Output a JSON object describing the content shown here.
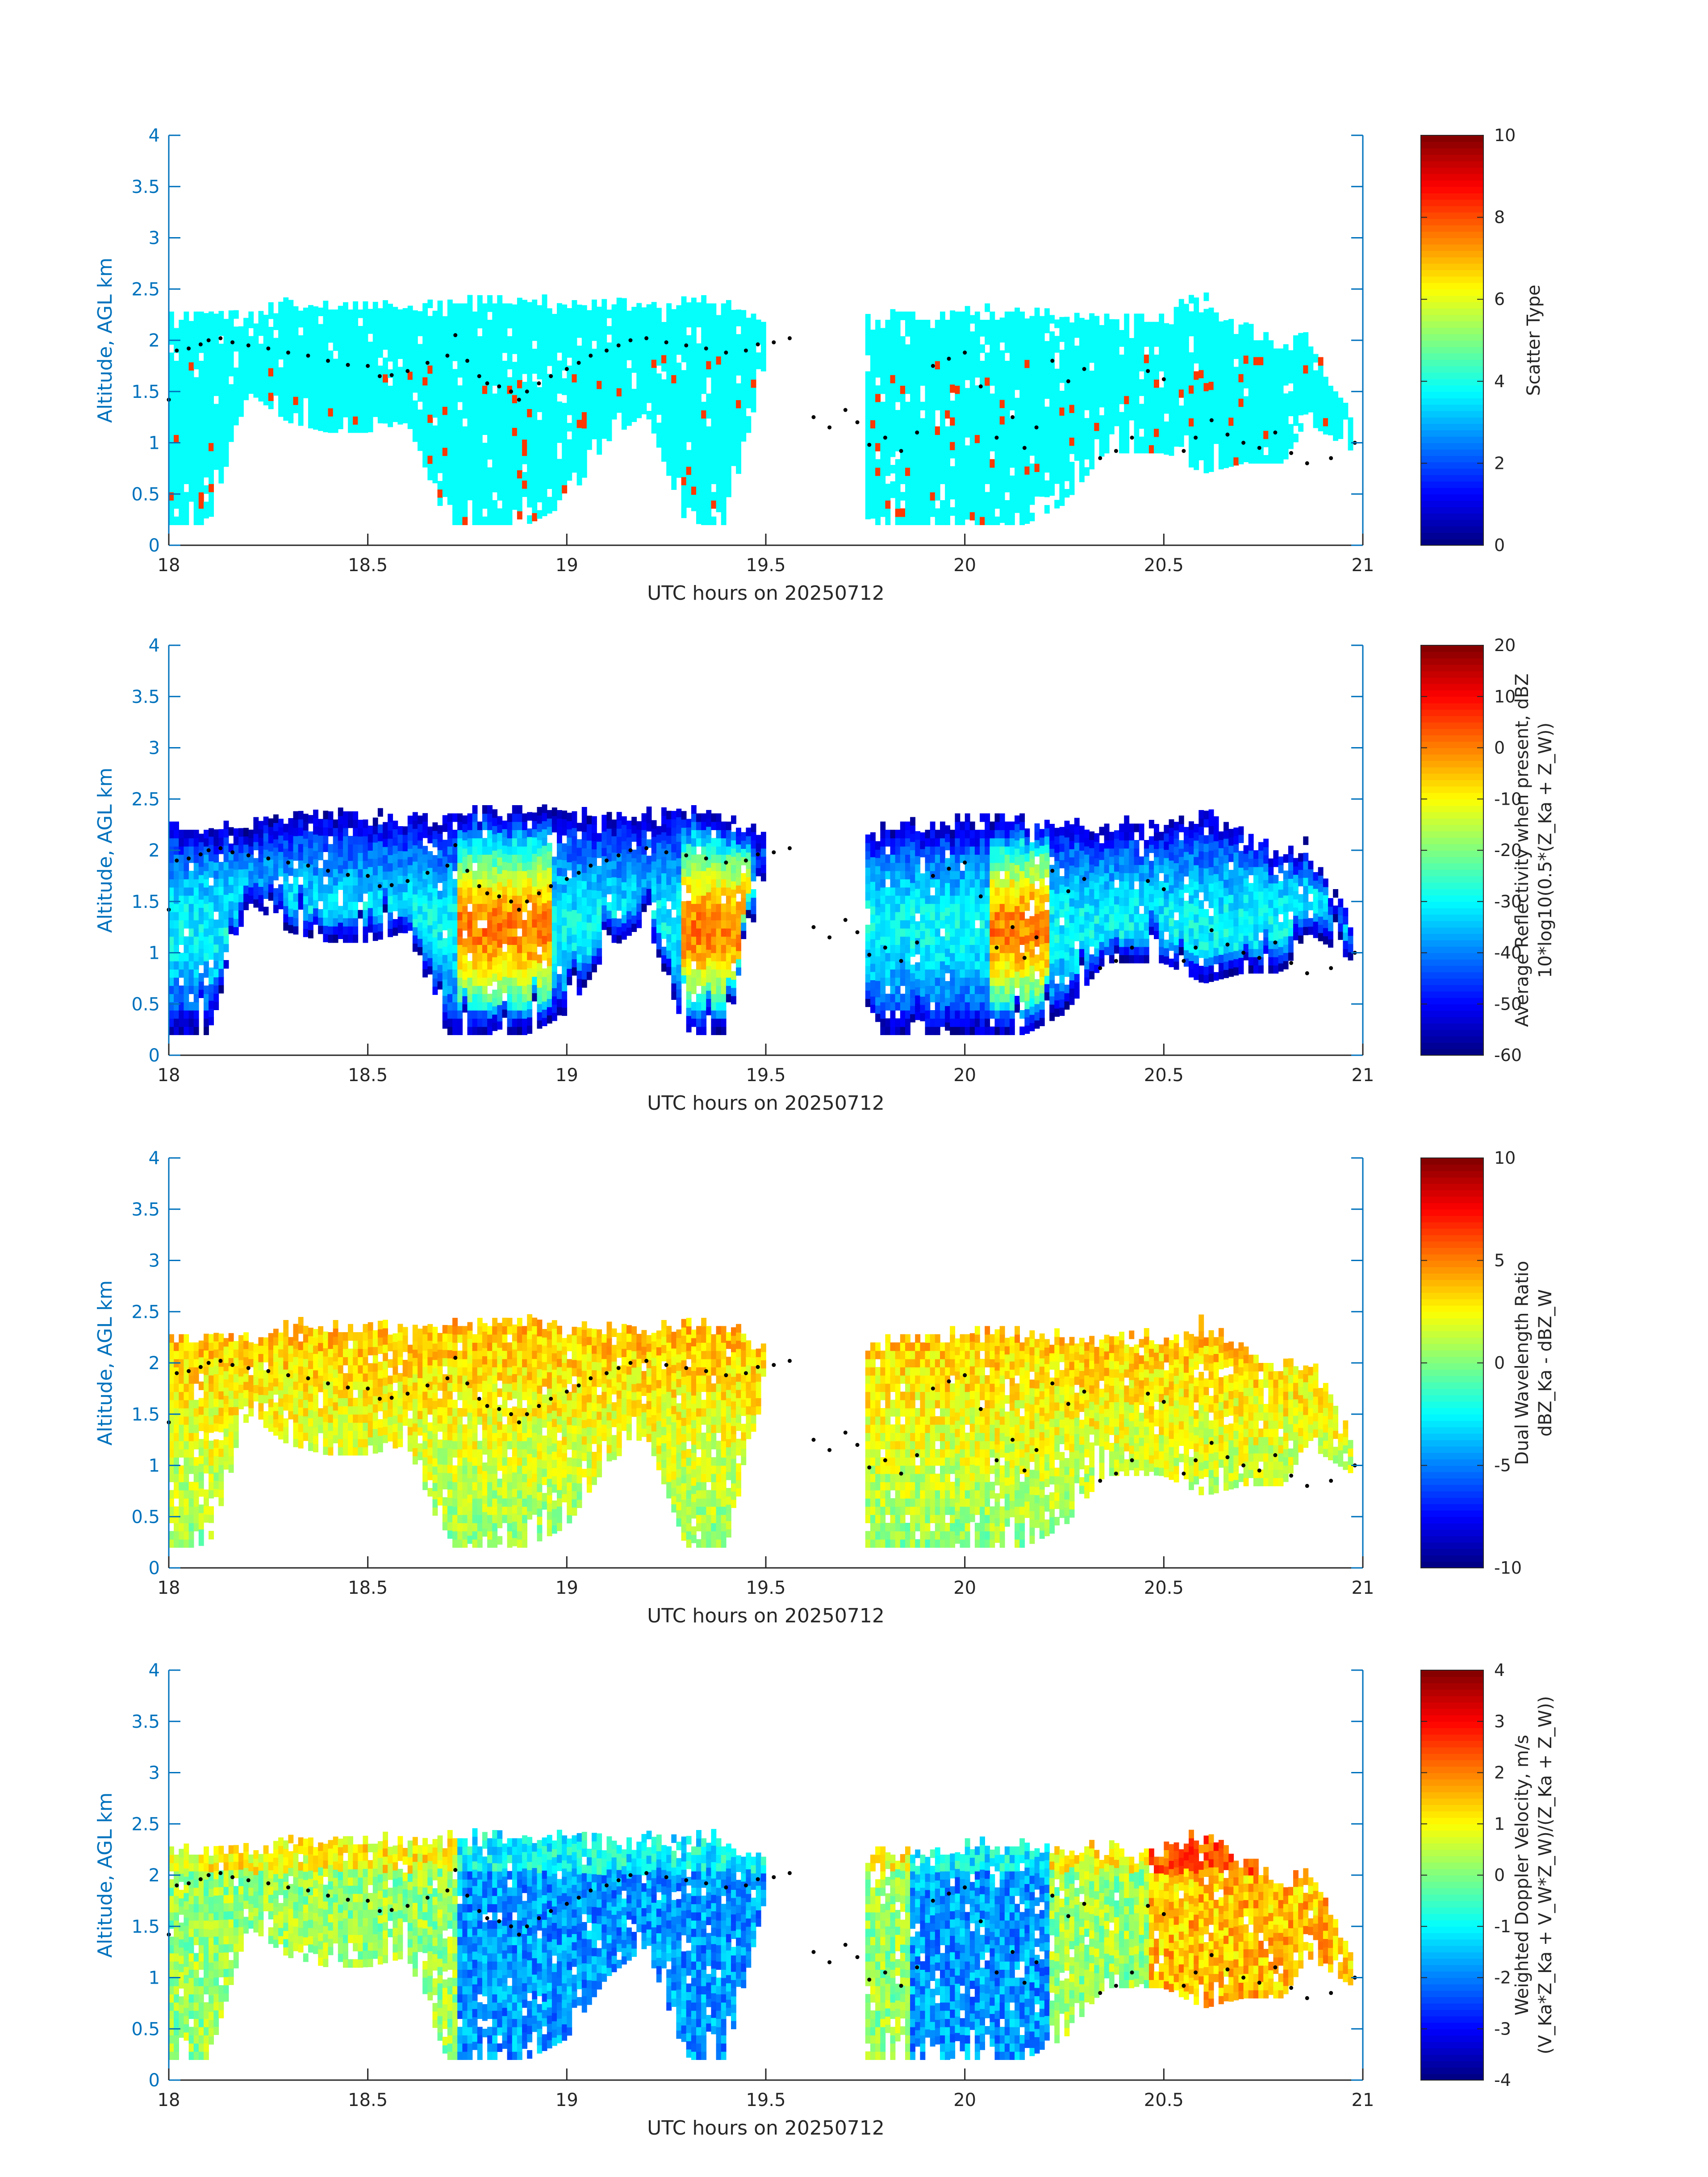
{
  "chart_data": [
    {
      "type": "heatmap",
      "xlabel": "UTC hours on 20250712",
      "ylabel": "Altitude, AGL km",
      "xlim": [
        18,
        21
      ],
      "ylim": [
        0,
        4
      ],
      "xticks": [
        "18",
        "18.5",
        "19",
        "19.5",
        "20",
        "20.5",
        "21"
      ],
      "yticks": [
        "0",
        "0.5",
        "1",
        "1.5",
        "2",
        "2.5",
        "3",
        "3.5",
        "4"
      ],
      "colormap": "jet",
      "colorbar": {
        "label_lines": [
          "Scatter Type"
        ],
        "clim": [
          0,
          10
        ],
        "ticks": [
          "0",
          "2",
          "4",
          "6",
          "8",
          "10"
        ]
      },
      "dominant_value": 3.8,
      "secondary_value": 8.2
    },
    {
      "type": "heatmap",
      "xlabel": "UTC hours on 20250712",
      "ylabel": "Altitude, AGL km",
      "xlim": [
        18,
        21
      ],
      "ylim": [
        0,
        4
      ],
      "xticks": [
        "18",
        "18.5",
        "19",
        "19.5",
        "20",
        "20.5",
        "21"
      ],
      "yticks": [
        "0",
        "0.5",
        "1",
        "1.5",
        "2",
        "2.5",
        "3",
        "3.5",
        "4"
      ],
      "colormap": "jet",
      "colorbar": {
        "label_lines": [
          "Average Reflectivity when present, dBZ",
          "10*log10(0.5*(Z_Ka + Z_W))"
        ],
        "clim": [
          -60,
          20
        ],
        "ticks": [
          "-60",
          "-50",
          "-40",
          "-30",
          "-20",
          "-10",
          "0",
          "10",
          "20"
        ]
      }
    },
    {
      "type": "heatmap",
      "xlabel": "UTC hours on 20250712",
      "ylabel": "Altitude, AGL km",
      "xlim": [
        18,
        21
      ],
      "ylim": [
        0,
        4
      ],
      "xticks": [
        "18",
        "18.5",
        "19",
        "19.5",
        "20",
        "20.5",
        "21"
      ],
      "yticks": [
        "0",
        "0.5",
        "1",
        "1.5",
        "2",
        "2.5",
        "3",
        "3.5",
        "4"
      ],
      "colormap": "jet",
      "colorbar": {
        "label_lines": [
          "Dual Wavelength Ratio",
          "dBZ_Ka - dBZ_W"
        ],
        "clim": [
          -10,
          10
        ],
        "ticks": [
          "-10",
          "-5",
          "0",
          "5",
          "10"
        ]
      }
    },
    {
      "type": "heatmap",
      "xlabel": "UTC hours on 20250712",
      "ylabel": "Altitude, AGL km",
      "xlim": [
        18,
        21
      ],
      "ylim": [
        0,
        4
      ],
      "xticks": [
        "18",
        "18.5",
        "19",
        "19.5",
        "20",
        "20.5",
        "21"
      ],
      "yticks": [
        "0",
        "0.5",
        "1",
        "1.5",
        "2",
        "2.5",
        "3",
        "3.5",
        "4"
      ],
      "colormap": "jet",
      "colorbar": {
        "label_lines": [
          "Weighted Doppler Velocity, m/s",
          "(V_Ka*Z_Ka + V_W*Z_W)/(Z_Ka + Z_W))"
        ],
        "clim": [
          -4,
          4
        ],
        "ticks": [
          "-4",
          "-3",
          "-2",
          "-1",
          "0",
          "1",
          "2",
          "3",
          "4"
        ]
      }
    }
  ],
  "echo_columns": [
    [
      18.0,
      0.2,
      2.2
    ],
    [
      18.1,
      0.2,
      2.2
    ],
    [
      18.2,
      1.5,
      2.2
    ],
    [
      18.3,
      1.2,
      2.3
    ],
    [
      18.4,
      1.1,
      2.3
    ],
    [
      18.5,
      1.1,
      2.3
    ],
    [
      18.6,
      1.2,
      2.3
    ],
    [
      18.7,
      0.2,
      2.3
    ],
    [
      18.8,
      0.2,
      2.35
    ],
    [
      18.9,
      0.2,
      2.35
    ],
    [
      19.0,
      0.4,
      2.3
    ],
    [
      19.1,
      1.0,
      2.3
    ],
    [
      19.2,
      1.3,
      2.3
    ],
    [
      19.3,
      0.2,
      2.35
    ],
    [
      19.4,
      0.2,
      2.3
    ],
    [
      19.5,
      1.8,
      2.1
    ],
    [
      19.75,
      0.2,
      2.1
    ],
    [
      19.85,
      0.2,
      2.2
    ],
    [
      19.95,
      0.2,
      2.2
    ],
    [
      20.05,
      0.2,
      2.25
    ],
    [
      20.15,
      0.2,
      2.25
    ],
    [
      20.25,
      0.4,
      2.2
    ],
    [
      20.35,
      0.9,
      2.2
    ],
    [
      20.5,
      0.9,
      2.2
    ],
    [
      20.6,
      0.7,
      2.35
    ],
    [
      20.7,
      0.8,
      2.1
    ],
    [
      20.8,
      0.8,
      1.9
    ],
    [
      20.86,
      1.2,
      2.0
    ],
    [
      20.98,
      0.9,
      1.15
    ]
  ],
  "cloud_base_markers": [
    [
      18.0,
      1.42
    ],
    [
      18.02,
      1.9
    ],
    [
      18.05,
      1.92
    ],
    [
      18.08,
      1.96
    ],
    [
      18.1,
      2.0
    ],
    [
      18.13,
      2.02
    ],
    [
      18.16,
      1.98
    ],
    [
      18.2,
      1.95
    ],
    [
      18.25,
      1.92
    ],
    [
      18.3,
      1.88
    ],
    [
      18.35,
      1.85
    ],
    [
      18.4,
      1.8
    ],
    [
      18.45,
      1.76
    ],
    [
      18.5,
      1.75
    ],
    [
      18.53,
      1.65
    ],
    [
      18.56,
      1.66
    ],
    [
      18.6,
      1.7
    ],
    [
      18.65,
      1.78
    ],
    [
      18.7,
      1.85
    ],
    [
      18.72,
      2.05
    ],
    [
      18.75,
      1.8
    ],
    [
      18.78,
      1.65
    ],
    [
      18.8,
      1.58
    ],
    [
      18.83,
      1.55
    ],
    [
      18.86,
      1.5
    ],
    [
      18.88,
      1.42
    ],
    [
      18.9,
      1.5
    ],
    [
      18.93,
      1.58
    ],
    [
      18.96,
      1.65
    ],
    [
      19.0,
      1.72
    ],
    [
      19.03,
      1.78
    ],
    [
      19.06,
      1.85
    ],
    [
      19.1,
      1.9
    ],
    [
      19.13,
      1.95
    ],
    [
      19.16,
      2.0
    ],
    [
      19.2,
      2.02
    ],
    [
      19.25,
      1.98
    ],
    [
      19.3,
      1.95
    ],
    [
      19.35,
      1.92
    ],
    [
      19.4,
      1.88
    ],
    [
      19.45,
      1.9
    ],
    [
      19.48,
      1.96
    ],
    [
      19.52,
      1.98
    ],
    [
      19.56,
      2.02
    ],
    [
      19.62,
      1.25
    ],
    [
      19.66,
      1.15
    ],
    [
      19.7,
      1.32
    ],
    [
      19.73,
      1.2
    ],
    [
      19.76,
      0.98
    ],
    [
      19.8,
      1.05
    ],
    [
      19.84,
      0.92
    ],
    [
      19.88,
      1.1
    ],
    [
      19.92,
      1.75
    ],
    [
      19.96,
      1.82
    ],
    [
      20.0,
      1.88
    ],
    [
      20.04,
      1.55
    ],
    [
      20.08,
      1.05
    ],
    [
      20.12,
      1.25
    ],
    [
      20.15,
      0.95
    ],
    [
      20.18,
      1.15
    ],
    [
      20.22,
      1.8
    ],
    [
      20.26,
      1.6
    ],
    [
      20.3,
      1.72
    ],
    [
      20.34,
      0.85
    ],
    [
      20.38,
      0.92
    ],
    [
      20.42,
      1.05
    ],
    [
      20.46,
      1.7
    ],
    [
      20.5,
      1.62
    ],
    [
      20.55,
      0.92
    ],
    [
      20.58,
      1.05
    ],
    [
      20.62,
      1.22
    ],
    [
      20.66,
      1.08
    ],
    [
      20.7,
      1.0
    ],
    [
      20.74,
      0.95
    ],
    [
      20.78,
      1.1
    ],
    [
      20.82,
      0.9
    ],
    [
      20.86,
      0.8
    ],
    [
      20.92,
      0.85
    ],
    [
      20.98,
      1.0
    ]
  ]
}
